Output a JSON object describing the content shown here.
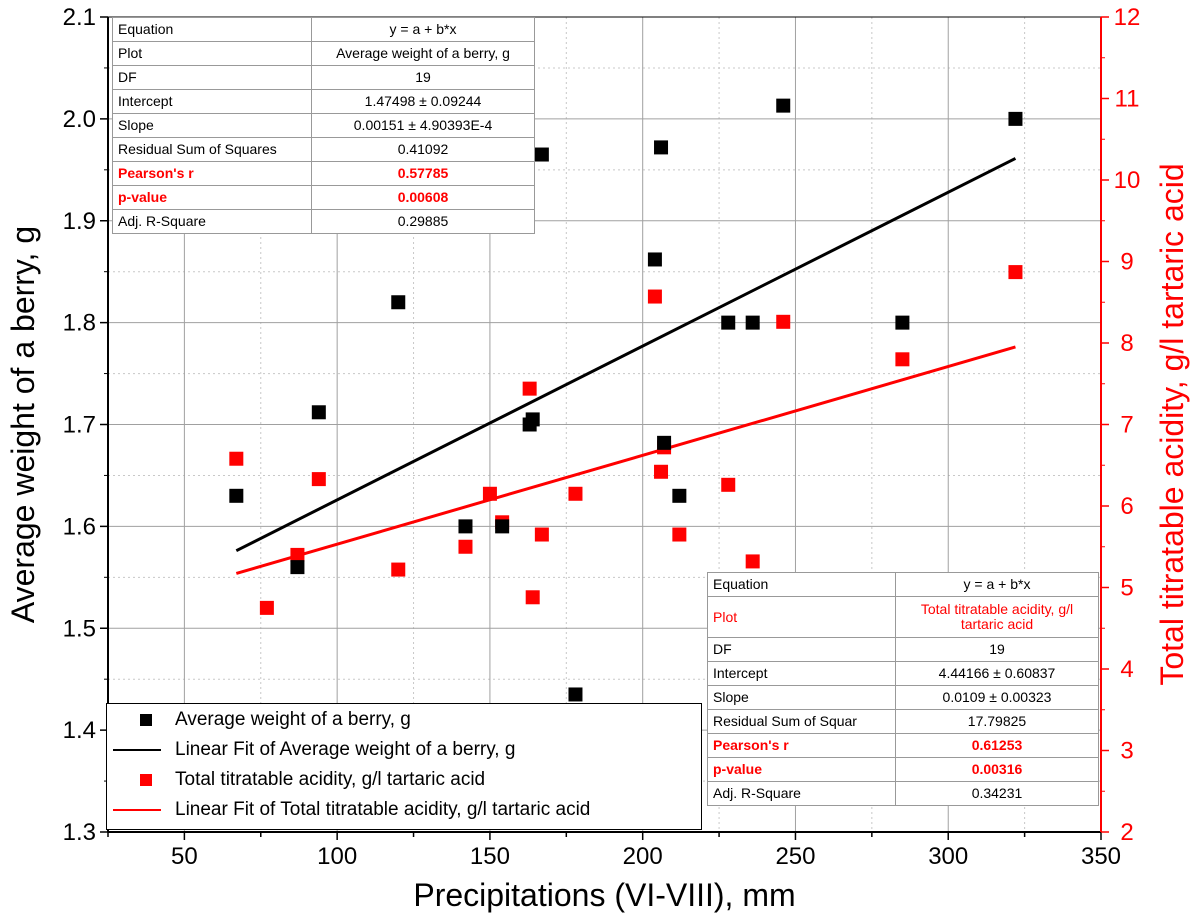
{
  "colors": {
    "black_series": "#000000",
    "red_series": "#ff0000",
    "grid": "#a0a0a0"
  },
  "chart_data": {
    "type": "scatter",
    "title": "",
    "xlabel": "Precipitations (VI-VIII), mm",
    "ylabel_left": "Average weight of a berry, g",
    "ylabel_right": "Total titratable acidity, g/l tartaric acid",
    "xlim": [
      25,
      350
    ],
    "ylim_left": [
      1.3,
      2.1
    ],
    "ylim_right": [
      2,
      12
    ],
    "x_ticks": [
      "50",
      "100",
      "150",
      "200",
      "250",
      "300",
      "350"
    ],
    "y_left_ticks": [
      "1.3",
      "1.4",
      "1.5",
      "1.6",
      "1.7",
      "1.8",
      "1.9",
      "2.0",
      "2.1"
    ],
    "y_right_ticks": [
      "2",
      "3",
      "4",
      "5",
      "6",
      "7",
      "8",
      "9",
      "10",
      "11",
      "12"
    ],
    "grid": true,
    "series": [
      {
        "name": "Average weight of a berry, g",
        "axis": "left",
        "color": "#000000",
        "x": [
          67,
          87,
          94,
          120,
          142,
          154,
          163,
          164,
          167,
          178,
          204,
          206,
          207,
          212,
          228,
          236,
          246,
          285,
          322
        ],
        "y": [
          1.63,
          1.56,
          1.712,
          1.82,
          1.6,
          1.6,
          1.7,
          1.705,
          1.965,
          1.435,
          1.862,
          1.972,
          1.682,
          1.63,
          1.8,
          1.8,
          2.013,
          1.8,
          2.0
        ]
      },
      {
        "name": "Total titratable acidity, g/l tartaric acid",
        "axis": "right",
        "color": "#ff0000",
        "x": [
          67,
          77,
          87,
          94,
          120,
          142,
          150,
          154,
          163,
          164,
          167,
          178,
          204,
          206,
          207,
          212,
          228,
          236,
          246,
          285,
          322
        ],
        "y": [
          6.58,
          4.75,
          5.4,
          6.33,
          5.22,
          5.5,
          6.15,
          5.8,
          7.44,
          4.88,
          5.65,
          6.15,
          8.57,
          6.42,
          6.72,
          5.65,
          6.26,
          5.32,
          8.26,
          7.8,
          8.87
        ]
      }
    ],
    "fits": [
      {
        "name": "Linear Fit of Average weight of a berry, g",
        "axis": "left",
        "color": "#000000",
        "intercept": 1.47498,
        "slope": 0.00151,
        "x_range": [
          67,
          322
        ]
      },
      {
        "name": "Linear Fit of Total titratable acidity, g/l tartaric acid",
        "axis": "right",
        "color": "#ff0000",
        "intercept": 4.44166,
        "slope": 0.0109,
        "x_range": [
          67,
          322
        ]
      }
    ]
  },
  "legend": {
    "items": [
      {
        "label": "Average weight of a berry, g",
        "kind": "square",
        "color": "#000000"
      },
      {
        "label": "Linear Fit of Average weight of a berry, g",
        "kind": "line",
        "color": "#000000"
      },
      {
        "label": "Total titratable acidity, g/l tartaric acid",
        "kind": "square",
        "color": "#ff0000"
      },
      {
        "label": "Linear Fit of Total titratable acidity, g/l tartaric acid",
        "kind": "line",
        "color": "#ff0000"
      }
    ]
  },
  "stats_table_1": {
    "equation": [
      "Equation",
      "y = a + b*x"
    ],
    "plot": [
      "Plot",
      "Average weight of a berry, g"
    ],
    "df": [
      "DF",
      "19"
    ],
    "intercept": [
      "Intercept",
      "1.47498 ± 0.09244"
    ],
    "slope": [
      "Slope",
      "0.00151 ± 4.90393E-4"
    ],
    "rss": [
      "Residual Sum of Squares",
      "0.41092"
    ],
    "pearson": [
      "Pearson's r",
      "0.57785"
    ],
    "pvalue": [
      "p-value",
      "0.00608"
    ],
    "adjr2": [
      "Adj. R-Square",
      "0.29885"
    ]
  },
  "stats_table_2": {
    "equation": [
      "Equation",
      "y = a + b*x"
    ],
    "plot": [
      "Plot",
      "Total titratable acidity, g/l tartaric acid"
    ],
    "df": [
      "DF",
      "19"
    ],
    "intercept": [
      "Intercept",
      "4.44166 ± 0.60837"
    ],
    "slope": [
      "Slope",
      "0.0109 ± 0.00323"
    ],
    "rss": [
      "Residual Sum of Squar",
      "17.79825"
    ],
    "pearson": [
      "Pearson's r",
      "0.61253"
    ],
    "pvalue": [
      "p-value",
      "0.00316"
    ],
    "adjr2": [
      "Adj. R-Square",
      "0.34231"
    ]
  }
}
